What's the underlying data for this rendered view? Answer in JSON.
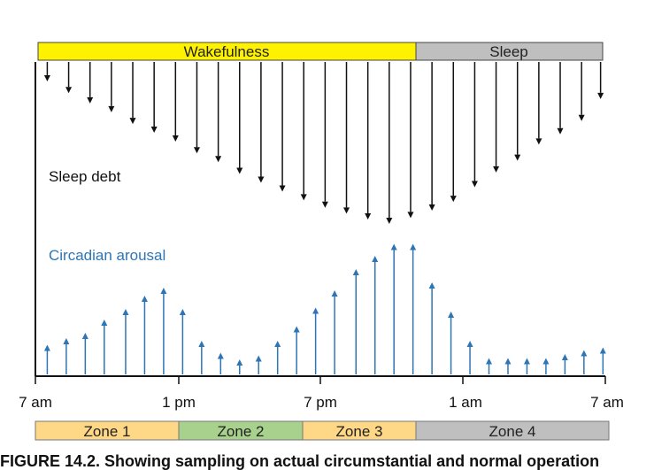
{
  "top_bar": {
    "wakefulness_label": "Wakefulness",
    "sleep_label": "Sleep",
    "wakefulness_color": "#fff200",
    "sleep_color": "#bfbfbf"
  },
  "labels": {
    "sleep_debt": "Sleep debt",
    "circadian_arousal": "Circadian arousal"
  },
  "colors": {
    "sleep_debt_arrows": "#111111",
    "circadian_arrows": "#2e75b6",
    "circadian_text": "#2e75b6"
  },
  "time_axis": {
    "ticks": [
      "7 am",
      "1 pm",
      "7 pm",
      "1 am",
      "7 am"
    ]
  },
  "zones": [
    {
      "label": "Zone 1",
      "color": "#ffd887"
    },
    {
      "label": "Zone 2",
      "color": "#a9d18e"
    },
    {
      "label": "Zone 3",
      "color": "#ffd887"
    },
    {
      "label": "Zone 4",
      "color": "#bfbfbf"
    }
  ],
  "chart_data": {
    "type": "diagram",
    "time_range_hours": [
      7,
      31
    ],
    "sleep_debt": {
      "name": "Sleep debt",
      "note": "relative arrow lengths, 0-1",
      "times_hours": [
        7.5,
        8.4,
        9.3,
        10.2,
        11.1,
        12.0,
        12.9,
        13.8,
        14.7,
        15.6,
        16.5,
        17.4,
        18.3,
        19.2,
        20.1,
        21.0,
        21.9,
        22.8,
        23.7,
        24.6,
        25.5,
        26.4,
        27.3,
        28.2,
        29.1,
        30.0,
        30.8
      ],
      "values": [
        0.06,
        0.14,
        0.21,
        0.27,
        0.35,
        0.41,
        0.47,
        0.55,
        0.61,
        0.69,
        0.75,
        0.81,
        0.87,
        0.92,
        0.96,
        1.0,
        1.03,
        0.99,
        0.94,
        0.88,
        0.78,
        0.68,
        0.6,
        0.49,
        0.42,
        0.33,
        0.18
      ]
    },
    "circadian_arousal": {
      "name": "Circadian arousal",
      "note": "relative arrow heights, 0-1",
      "times_hours": [
        7.5,
        8.3,
        9.1,
        9.9,
        10.8,
        11.6,
        12.4,
        13.2,
        14.0,
        14.8,
        15.6,
        16.4,
        17.2,
        18.0,
        18.8,
        19.6,
        20.5,
        21.3,
        22.1,
        22.9,
        23.7,
        24.5,
        25.3,
        26.1,
        26.9,
        27.7,
        28.5,
        29.3,
        30.1,
        30.9
      ],
      "values": [
        0.17,
        0.22,
        0.26,
        0.36,
        0.44,
        0.54,
        0.6,
        0.44,
        0.2,
        0.11,
        0.06,
        0.09,
        0.2,
        0.31,
        0.45,
        0.58,
        0.74,
        0.84,
        0.93,
        0.93,
        0.64,
        0.42,
        0.2,
        0.07,
        0.07,
        0.07,
        0.07,
        0.1,
        0.13,
        0.15
      ]
    }
  },
  "caption": "FIGURE 14.2. Showing sampling on actual circumstantial and normal operation"
}
